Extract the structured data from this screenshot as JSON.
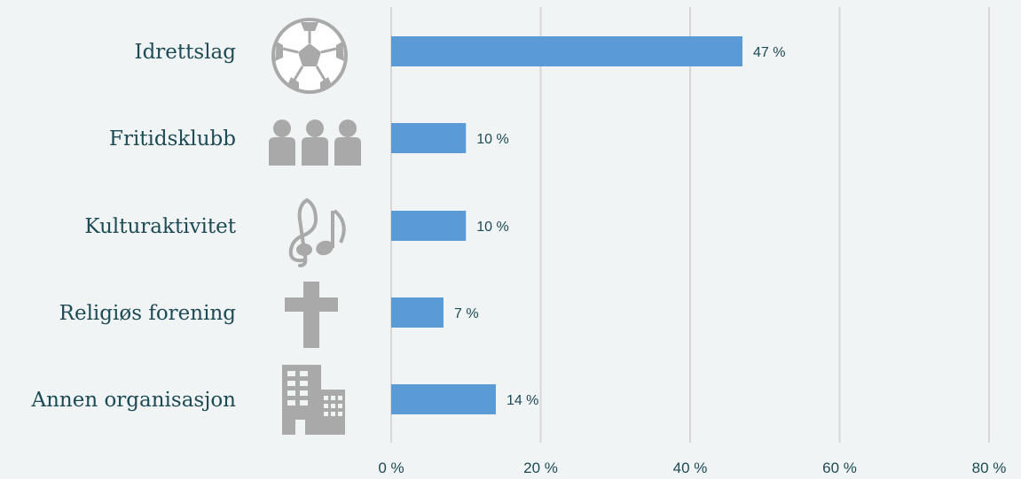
{
  "chart_data": {
    "type": "bar",
    "orientation": "horizontal",
    "categories": [
      "Idrettslag",
      "Fritidsklubb",
      "Kulturaktivitet",
      "Religiøs forening",
      "Annen organisasjon"
    ],
    "icons": [
      "soccer-ball-icon",
      "people-group-icon",
      "music-notes-icon",
      "cross-icon",
      "buildings-icon"
    ],
    "values": [
      47,
      10,
      10,
      7,
      14
    ],
    "value_labels": [
      "47 %",
      "10 %",
      "10 %",
      "7 %",
      "14 %"
    ],
    "xlim": [
      0,
      80
    ],
    "ticks": [
      0,
      20,
      40,
      60,
      80
    ],
    "tick_labels": [
      "0 %",
      "20 %",
      "40 %",
      "60 %",
      "80 %"
    ],
    "grid": true,
    "bar_color": "#5b9bd5",
    "text_color": "#1c4a55",
    "icon_color": "#a9a9a9",
    "title": "",
    "xlabel": "",
    "ylabel": ""
  }
}
